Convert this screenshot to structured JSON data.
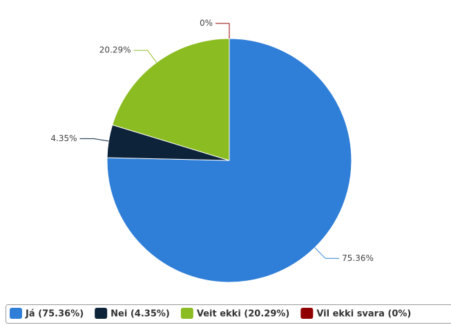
{
  "chart_data": {
    "type": "pie",
    "categories": [
      "Já",
      "Nei",
      "Veit ekki",
      "Vil ekki svara"
    ],
    "values": [
      75.36,
      4.35,
      20.29,
      0
    ],
    "value_labels": [
      "75.36%",
      "4.35%",
      "20.29%",
      "0%"
    ],
    "colors": [
      "#2f7ed8",
      "#0d233a",
      "#8bbc21",
      "#910000"
    ],
    "legend_labels": [
      "Já (75.36%)",
      "Nei (4.35%)",
      "Veit ekki (20.29%)",
      "Vil ekki svara (0%)"
    ]
  }
}
